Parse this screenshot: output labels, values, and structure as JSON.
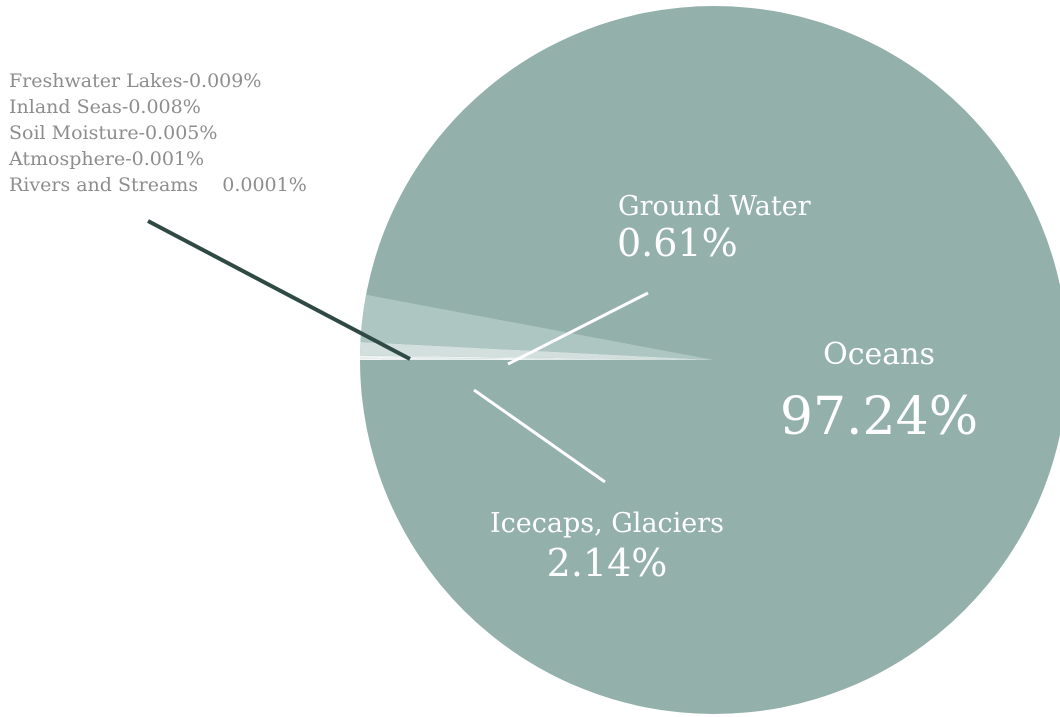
{
  "chart_data": {
    "type": "pie",
    "slices": [
      {
        "name": "Oceans",
        "value": 97.24,
        "value_label": "97.24%",
        "color": "#93b0ab"
      },
      {
        "name": "Icecaps, Glaciers",
        "value": 2.14,
        "value_label": "2.14%",
        "color": "#aec6c2"
      },
      {
        "name": "Ground Water",
        "value": 0.61,
        "value_label": "0.61%",
        "color": "#d3dfdc"
      },
      {
        "name": "Freshwater Lakes",
        "value": 0.009,
        "value_label": "0.009%",
        "color": "#f2f6f5"
      },
      {
        "name": "Inland Seas",
        "value": 0.008,
        "value_label": "0.008%",
        "color": "#f2f6f5"
      },
      {
        "name": "Soil Moisture",
        "value": 0.005,
        "value_label": "0.005%",
        "color": "#f2f6f5"
      },
      {
        "name": "Atmosphere",
        "value": 0.001,
        "value_label": "0.001%",
        "color": "#f2f6f5"
      },
      {
        "name": "Rivers and Streams",
        "value": 0.0001,
        "value_label": "0.0001%",
        "color": "#f2f6f5"
      }
    ],
    "minor_labels": [
      "Freshwater Lakes-0.009%",
      "Inland Seas-0.008%",
      "Soil Moisture-0.005%",
      "Atmosphere-0.001%",
      "Rivers and Streams    0.0001%"
    ]
  },
  "colors": {
    "label_text": "#ffffff",
    "minor_text": "#8d8d8d",
    "leader_dark": "#2f4a44",
    "leader_light": "#ffffff"
  }
}
